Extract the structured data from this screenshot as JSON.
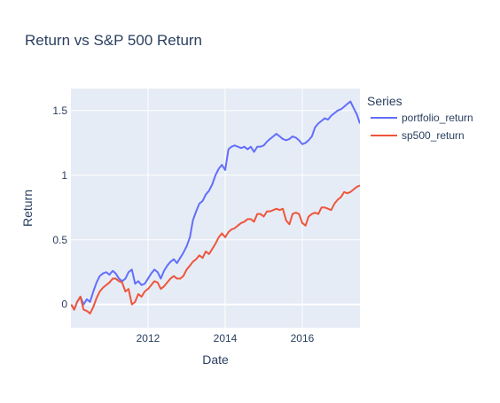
{
  "chart_data": {
    "type": "line",
    "title": "Return vs S&P 500 Return",
    "xlabel": "Date",
    "ylabel": "Return",
    "xlim": [
      "2010-01-01",
      "2017-06-30"
    ],
    "ylim": [
      -0.18,
      1.67
    ],
    "x_ticks": [
      {
        "value": "2012-01-01",
        "label": "2012"
      },
      {
        "value": "2014-01-01",
        "label": "2014"
      },
      {
        "value": "2016-01-01",
        "label": "2016"
      }
    ],
    "y_ticks": [
      {
        "value": 0,
        "label": "0"
      },
      {
        "value": 0.5,
        "label": "0.5"
      },
      {
        "value": 1,
        "label": "1"
      },
      {
        "value": 1.5,
        "label": "1.5"
      }
    ],
    "grid": true,
    "background": "#e5ecf6",
    "legend": {
      "title": "Series",
      "placement": "right-top"
    },
    "series": [
      {
        "name": "portfolio_return",
        "color": "#636efa",
        "points": [
          [
            "2010-01-04",
            0.0
          ],
          [
            "2010-02-01",
            -0.04
          ],
          [
            "2010-03-01",
            0.02
          ],
          [
            "2010-04-01",
            0.06
          ],
          [
            "2010-05-01",
            0.0
          ],
          [
            "2010-06-01",
            0.04
          ],
          [
            "2010-07-01",
            0.02
          ],
          [
            "2010-08-01",
            0.1
          ],
          [
            "2010-09-01",
            0.17
          ],
          [
            "2010-10-01",
            0.22
          ],
          [
            "2010-11-01",
            0.24
          ],
          [
            "2010-12-01",
            0.25
          ],
          [
            "2011-01-01",
            0.23
          ],
          [
            "2011-02-01",
            0.26
          ],
          [
            "2011-03-01",
            0.24
          ],
          [
            "2011-04-01",
            0.2
          ],
          [
            "2011-05-01",
            0.18
          ],
          [
            "2011-06-01",
            0.2
          ],
          [
            "2011-07-01",
            0.25
          ],
          [
            "2011-08-01",
            0.27
          ],
          [
            "2011-09-01",
            0.16
          ],
          [
            "2011-10-01",
            0.18
          ],
          [
            "2011-11-01",
            0.15
          ],
          [
            "2011-12-01",
            0.16
          ],
          [
            "2012-01-01",
            0.2
          ],
          [
            "2012-02-01",
            0.24
          ],
          [
            "2012-03-01",
            0.27
          ],
          [
            "2012-04-01",
            0.25
          ],
          [
            "2012-05-01",
            0.2
          ],
          [
            "2012-06-01",
            0.26
          ],
          [
            "2012-07-01",
            0.3
          ],
          [
            "2012-08-01",
            0.33
          ],
          [
            "2012-09-01",
            0.35
          ],
          [
            "2012-10-01",
            0.32
          ],
          [
            "2012-11-01",
            0.36
          ],
          [
            "2012-12-01",
            0.4
          ],
          [
            "2013-01-01",
            0.45
          ],
          [
            "2013-02-01",
            0.52
          ],
          [
            "2013-03-01",
            0.65
          ],
          [
            "2013-04-01",
            0.72
          ],
          [
            "2013-05-01",
            0.78
          ],
          [
            "2013-06-01",
            0.8
          ],
          [
            "2013-07-01",
            0.85
          ],
          [
            "2013-08-01",
            0.88
          ],
          [
            "2013-09-01",
            0.93
          ],
          [
            "2013-10-01",
            1.0
          ],
          [
            "2013-11-01",
            1.05
          ],
          [
            "2013-12-01",
            1.08
          ],
          [
            "2014-01-01",
            1.04
          ],
          [
            "2014-02-01",
            1.2
          ],
          [
            "2014-03-01",
            1.22
          ],
          [
            "2014-04-01",
            1.23
          ],
          [
            "2014-05-01",
            1.22
          ],
          [
            "2014-06-01",
            1.21
          ],
          [
            "2014-07-01",
            1.22
          ],
          [
            "2014-08-01",
            1.2
          ],
          [
            "2014-09-01",
            1.22
          ],
          [
            "2014-10-01",
            1.18
          ],
          [
            "2014-11-01",
            1.22
          ],
          [
            "2014-12-01",
            1.22
          ],
          [
            "2015-01-01",
            1.23
          ],
          [
            "2015-02-01",
            1.26
          ],
          [
            "2015-03-01",
            1.28
          ],
          [
            "2015-04-01",
            1.3
          ],
          [
            "2015-05-01",
            1.32
          ],
          [
            "2015-06-01",
            1.3
          ],
          [
            "2015-07-01",
            1.28
          ],
          [
            "2015-08-01",
            1.27
          ],
          [
            "2015-09-01",
            1.28
          ],
          [
            "2015-10-01",
            1.3
          ],
          [
            "2015-11-01",
            1.29
          ],
          [
            "2015-12-01",
            1.27
          ],
          [
            "2016-01-01",
            1.24
          ],
          [
            "2016-02-01",
            1.25
          ],
          [
            "2016-03-01",
            1.27
          ],
          [
            "2016-04-01",
            1.3
          ],
          [
            "2016-05-01",
            1.37
          ],
          [
            "2016-06-01",
            1.4
          ],
          [
            "2016-07-01",
            1.42
          ],
          [
            "2016-08-01",
            1.44
          ],
          [
            "2016-09-01",
            1.43
          ],
          [
            "2016-10-01",
            1.46
          ],
          [
            "2016-11-01",
            1.48
          ],
          [
            "2016-12-01",
            1.5
          ],
          [
            "2017-01-01",
            1.51
          ],
          [
            "2017-02-01",
            1.53
          ],
          [
            "2017-03-01",
            1.55
          ],
          [
            "2017-04-01",
            1.57
          ],
          [
            "2017-05-01",
            1.52
          ],
          [
            "2017-06-01",
            1.47
          ],
          [
            "2017-06-30",
            1.4
          ]
        ]
      },
      {
        "name": "sp500_return",
        "color": "#ef553b",
        "points": [
          [
            "2010-01-04",
            0.0
          ],
          [
            "2010-02-01",
            -0.04
          ],
          [
            "2010-03-01",
            0.02
          ],
          [
            "2010-04-01",
            0.06
          ],
          [
            "2010-05-01",
            -0.04
          ],
          [
            "2010-06-01",
            -0.05
          ],
          [
            "2010-07-01",
            -0.07
          ],
          [
            "2010-08-01",
            -0.02
          ],
          [
            "2010-09-01",
            0.05
          ],
          [
            "2010-10-01",
            0.1
          ],
          [
            "2010-11-01",
            0.13
          ],
          [
            "2010-12-01",
            0.15
          ],
          [
            "2011-01-01",
            0.17
          ],
          [
            "2011-02-01",
            0.2
          ],
          [
            "2011-03-01",
            0.2
          ],
          [
            "2011-04-01",
            0.18
          ],
          [
            "2011-05-01",
            0.17
          ],
          [
            "2011-06-01",
            0.1
          ],
          [
            "2011-07-01",
            0.12
          ],
          [
            "2011-08-01",
            0.0
          ],
          [
            "2011-09-01",
            0.02
          ],
          [
            "2011-10-01",
            0.08
          ],
          [
            "2011-11-01",
            0.06
          ],
          [
            "2011-12-01",
            0.1
          ],
          [
            "2012-01-01",
            0.12
          ],
          [
            "2012-02-01",
            0.15
          ],
          [
            "2012-03-01",
            0.18
          ],
          [
            "2012-04-01",
            0.17
          ],
          [
            "2012-05-01",
            0.12
          ],
          [
            "2012-06-01",
            0.14
          ],
          [
            "2012-07-01",
            0.17
          ],
          [
            "2012-08-01",
            0.2
          ],
          [
            "2012-09-01",
            0.22
          ],
          [
            "2012-10-01",
            0.2
          ],
          [
            "2012-11-01",
            0.2
          ],
          [
            "2012-12-01",
            0.22
          ],
          [
            "2013-01-01",
            0.27
          ],
          [
            "2013-02-01",
            0.3
          ],
          [
            "2013-03-01",
            0.33
          ],
          [
            "2013-04-01",
            0.35
          ],
          [
            "2013-05-01",
            0.38
          ],
          [
            "2013-06-01",
            0.36
          ],
          [
            "2013-07-01",
            0.41
          ],
          [
            "2013-08-01",
            0.39
          ],
          [
            "2013-09-01",
            0.43
          ],
          [
            "2013-10-01",
            0.47
          ],
          [
            "2013-11-01",
            0.52
          ],
          [
            "2013-12-01",
            0.55
          ],
          [
            "2014-01-01",
            0.52
          ],
          [
            "2014-02-01",
            0.56
          ],
          [
            "2014-03-01",
            0.58
          ],
          [
            "2014-04-01",
            0.59
          ],
          [
            "2014-05-01",
            0.61
          ],
          [
            "2014-06-01",
            0.63
          ],
          [
            "2014-07-01",
            0.64
          ],
          [
            "2014-08-01",
            0.66
          ],
          [
            "2014-09-01",
            0.66
          ],
          [
            "2014-10-01",
            0.64
          ],
          [
            "2014-11-01",
            0.7
          ],
          [
            "2014-12-01",
            0.7
          ],
          [
            "2015-01-01",
            0.68
          ],
          [
            "2015-02-01",
            0.72
          ],
          [
            "2015-03-01",
            0.72
          ],
          [
            "2015-04-01",
            0.73
          ],
          [
            "2015-05-01",
            0.74
          ],
          [
            "2015-06-01",
            0.73
          ],
          [
            "2015-07-01",
            0.74
          ],
          [
            "2015-08-01",
            0.65
          ],
          [
            "2015-09-01",
            0.62
          ],
          [
            "2015-10-01",
            0.7
          ],
          [
            "2015-11-01",
            0.71
          ],
          [
            "2015-12-01",
            0.7
          ],
          [
            "2016-01-01",
            0.63
          ],
          [
            "2016-02-01",
            0.61
          ],
          [
            "2016-03-01",
            0.68
          ],
          [
            "2016-04-01",
            0.7
          ],
          [
            "2016-05-01",
            0.71
          ],
          [
            "2016-06-01",
            0.7
          ],
          [
            "2016-07-01",
            0.75
          ],
          [
            "2016-08-01",
            0.75
          ],
          [
            "2016-09-01",
            0.74
          ],
          [
            "2016-10-01",
            0.73
          ],
          [
            "2016-11-01",
            0.78
          ],
          [
            "2016-12-01",
            0.81
          ],
          [
            "2017-01-01",
            0.83
          ],
          [
            "2017-02-01",
            0.87
          ],
          [
            "2017-03-01",
            0.86
          ],
          [
            "2017-04-01",
            0.87
          ],
          [
            "2017-05-01",
            0.89
          ],
          [
            "2017-06-01",
            0.91
          ],
          [
            "2017-06-30",
            0.92
          ]
        ]
      }
    ]
  }
}
